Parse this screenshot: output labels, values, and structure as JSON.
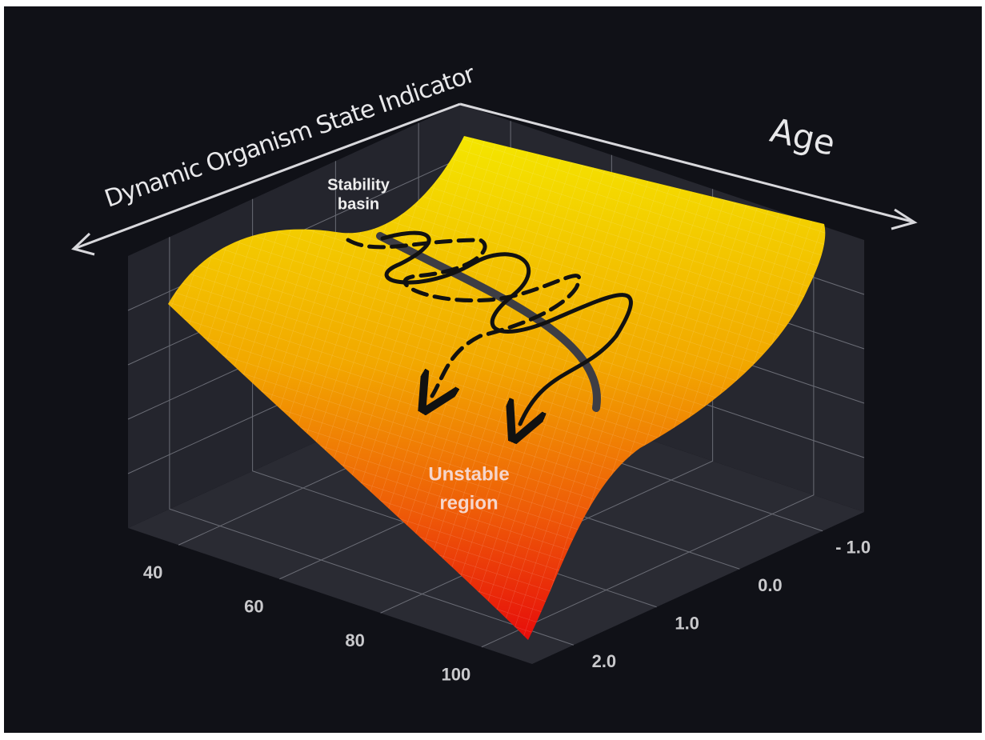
{
  "chart_data": {
    "type": "surface",
    "x_label": "Age",
    "y_label": "Dynamic Organism State Indicator",
    "xlim": [
      30,
      110
    ],
    "xticks": [
      40,
      60,
      80,
      100
    ],
    "ylim": [
      -1.5,
      2.5
    ],
    "yticks": [
      {
        "value": -1,
        "label": "- 1.0"
      },
      {
        "value": 0,
        "label": "0.0"
      },
      {
        "value": 1,
        "label": "1.0"
      },
      {
        "value": 2,
        "label": "2.0"
      }
    ],
    "annotations": [
      {
        "lines": [
          "Stability",
          "basin"
        ]
      },
      {
        "lines": [
          "Unstable",
          "region"
        ]
      }
    ],
    "grid": true
  }
}
